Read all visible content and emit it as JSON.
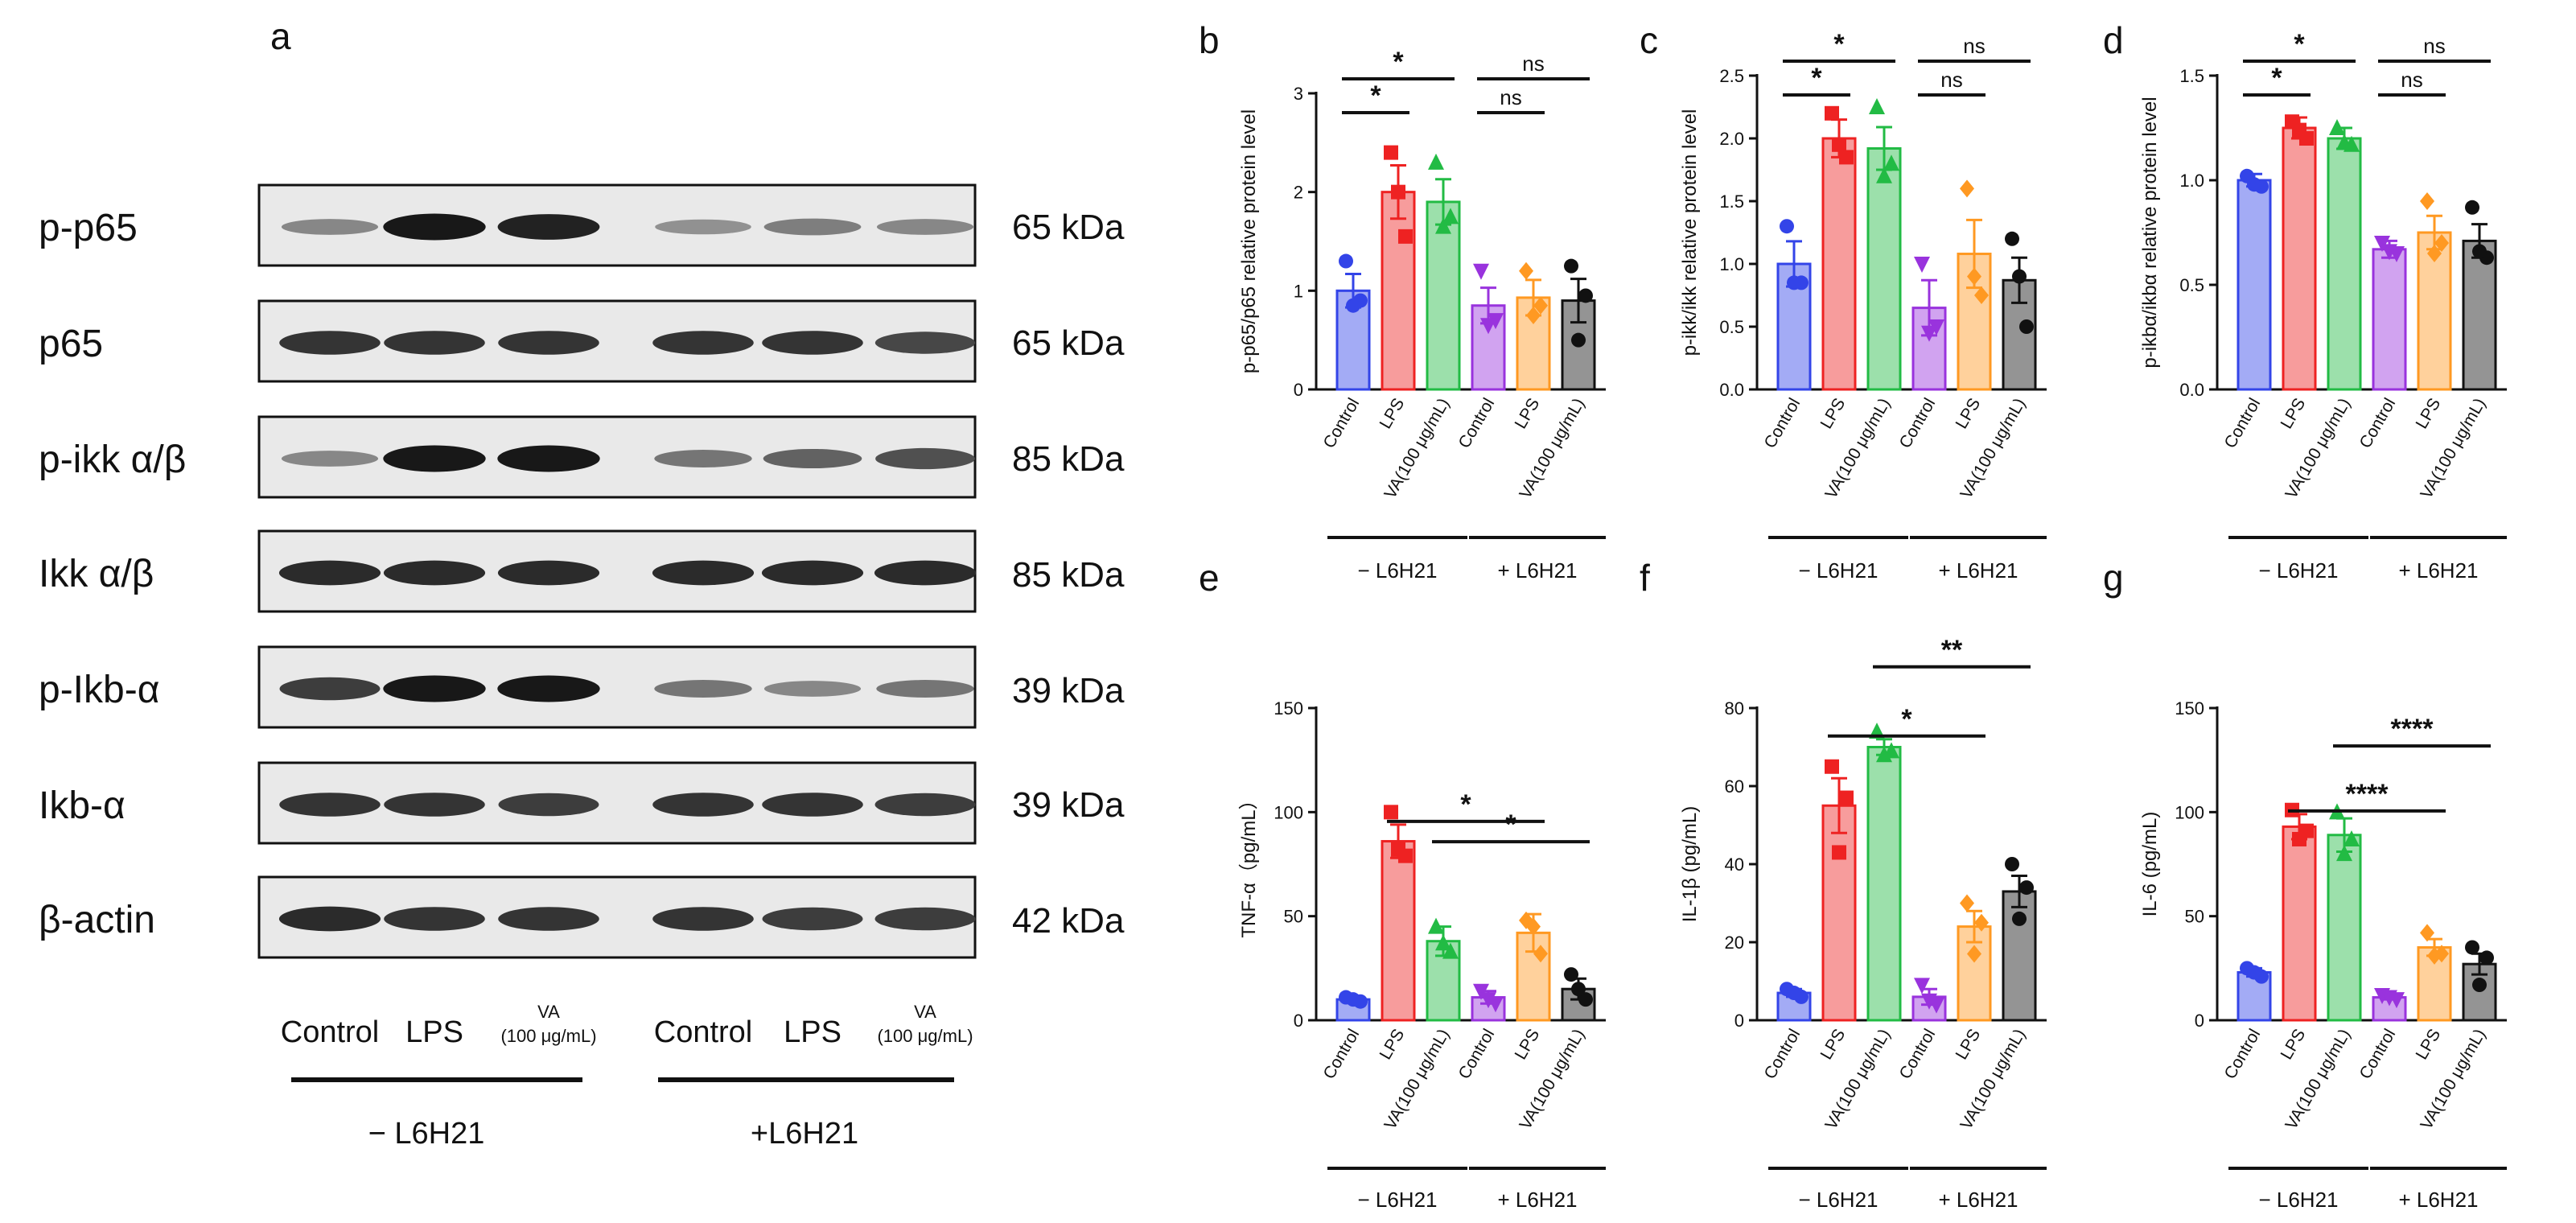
{
  "western_blot": {
    "panel_label": "a",
    "proteins": [
      {
        "name": "p-p65",
        "kda": "65 kDa"
      },
      {
        "name": "p65",
        "kda": "65 kDa"
      },
      {
        "name": "p-ikk α/β",
        "kda": "85 kDa"
      },
      {
        "name": "Ikk α/β",
        "kda": "85 kDa"
      },
      {
        "name": "p-Ikb-α",
        "kda": "39 kDa"
      },
      {
        "name": "Ikb-α",
        "kda": "39 kDa"
      },
      {
        "name": "β-actin",
        "kda": "42 kDa"
      }
    ],
    "lanes": [
      "Control",
      "LPS",
      "VA",
      "Control",
      "LPS",
      "VA"
    ],
    "lane_sub": "(100 μg/mL)",
    "groups": [
      "− L6H21",
      "+L6H21"
    ],
    "band_intensity": [
      [
        0.35,
        0.95,
        0.9,
        0.3,
        0.4,
        0.35
      ],
      [
        0.8,
        0.8,
        0.8,
        0.8,
        0.8,
        0.7
      ],
      [
        0.35,
        0.95,
        0.95,
        0.45,
        0.55,
        0.65
      ],
      [
        0.85,
        0.85,
        0.85,
        0.85,
        0.85,
        0.85
      ],
      [
        0.75,
        0.95,
        0.95,
        0.45,
        0.35,
        0.45
      ],
      [
        0.8,
        0.8,
        0.75,
        0.8,
        0.8,
        0.75
      ],
      [
        0.85,
        0.8,
        0.8,
        0.8,
        0.75,
        0.75
      ]
    ]
  },
  "colors": {
    "Control": "#3344e8",
    "LPS": "#ee2222",
    "VA": "#22bb44",
    "Control_L6H21": "#9933dd",
    "LPS_L6H21": "#ff9922",
    "VA_L6H21": "#111111"
  },
  "chart_data": [
    {
      "panel": "b",
      "type": "bar",
      "ylabel": "p-p65/p65 relative protein level",
      "categories": [
        "Control",
        "LPS",
        "VA(100 μg/mL)",
        "Control",
        "LPS",
        "VA(100 μg/mL)"
      ],
      "groups": [
        "− L6H21",
        "+ L6H21"
      ],
      "values": [
        1.0,
        2.0,
        1.9,
        0.85,
        0.93,
        0.9
      ],
      "errors": [
        0.17,
        0.27,
        0.23,
        0.18,
        0.18,
        0.22
      ],
      "points": [
        [
          1.3,
          0.9,
          0.85
        ],
        [
          2.4,
          1.55,
          2.0
        ],
        [
          2.3,
          1.75,
          1.65
        ],
        [
          1.2,
          0.7,
          0.65
        ],
        [
          1.2,
          0.85,
          0.75
        ],
        [
          1.25,
          0.95,
          0.5
        ]
      ],
      "ylim": [
        0,
        3
      ],
      "yticks": [
        0,
        1,
        2,
        3
      ],
      "significance": [
        {
          "from": 0,
          "to": 1,
          "label": "*"
        },
        {
          "from": 0,
          "to": 2,
          "label": "*"
        },
        {
          "from": 3,
          "to": 4,
          "label": "ns"
        },
        {
          "from": 3,
          "to": 5,
          "label": "ns"
        }
      ]
    },
    {
      "panel": "c",
      "type": "bar",
      "ylabel": "p-ikk/ikk relative protein level",
      "categories": [
        "Control",
        "LPS",
        "VA(100 μg/mL)",
        "Control",
        "LPS",
        "VA(100 μg/mL)"
      ],
      "groups": [
        "− L6H21",
        "+ L6H21"
      ],
      "values": [
        1.0,
        2.0,
        1.92,
        0.65,
        1.08,
        0.87
      ],
      "errors": [
        0.18,
        0.15,
        0.17,
        0.22,
        0.27,
        0.18
      ],
      "points": [
        [
          1.3,
          0.85,
          0.85
        ],
        [
          2.2,
          1.85,
          1.95
        ],
        [
          2.25,
          1.8,
          1.7
        ],
        [
          1.0,
          0.5,
          0.45
        ],
        [
          1.6,
          0.75,
          0.9
        ],
        [
          1.2,
          0.5,
          0.9
        ]
      ],
      "ylim": [
        0,
        2.5
      ],
      "yticks": [
        0.0,
        0.5,
        1.0,
        1.5,
        2.0,
        2.5
      ],
      "significance": [
        {
          "from": 0,
          "to": 1,
          "label": "*"
        },
        {
          "from": 0,
          "to": 2,
          "label": "*"
        },
        {
          "from": 3,
          "to": 4,
          "label": "ns"
        },
        {
          "from": 3,
          "to": 5,
          "label": "ns"
        }
      ]
    },
    {
      "panel": "d",
      "type": "bar",
      "ylabel": "p-ikbα/ikbα relative protein level",
      "categories": [
        "Control",
        "LPS",
        "VA(100 μg/mL)",
        "Control",
        "LPS",
        "VA(100 μg/mL)"
      ],
      "groups": [
        "− L6H21",
        "+ L6H21"
      ],
      "values": [
        1.0,
        1.25,
        1.2,
        0.67,
        0.75,
        0.71
      ],
      "errors": [
        0.03,
        0.05,
        0.05,
        0.04,
        0.08,
        0.08
      ],
      "points": [
        [
          1.02,
          0.97,
          0.98
        ],
        [
          1.28,
          1.2,
          1.24
        ],
        [
          1.25,
          1.17,
          1.18
        ],
        [
          0.7,
          0.65,
          0.66
        ],
        [
          0.9,
          0.7,
          0.65
        ],
        [
          0.87,
          0.63,
          0.66
        ]
      ],
      "ylim": [
        0,
        1.5
      ],
      "yticks": [
        0.0,
        0.5,
        1.0,
        1.5
      ],
      "significance": [
        {
          "from": 0,
          "to": 1,
          "label": "*"
        },
        {
          "from": 0,
          "to": 2,
          "label": "*"
        },
        {
          "from": 3,
          "to": 4,
          "label": "ns"
        },
        {
          "from": 3,
          "to": 5,
          "label": "ns"
        }
      ]
    },
    {
      "panel": "e",
      "type": "bar",
      "ylabel": "TNF-α（pg/mL）",
      "categories": [
        "Control",
        "LPS",
        "VA(100 μg/mL)",
        "Control",
        "LPS",
        "VA(100 μg/mL)"
      ],
      "groups": [
        "− L6H21",
        "+ L6H21"
      ],
      "values": [
        10,
        86,
        38,
        11,
        42,
        15
      ],
      "errors": [
        1,
        8,
        7,
        3,
        9,
        5
      ],
      "points": [
        [
          11,
          9,
          10
        ],
        [
          100,
          79,
          82
        ],
        [
          45,
          33,
          37
        ],
        [
          14,
          8,
          10
        ],
        [
          48,
          32,
          45
        ],
        [
          22,
          10,
          15
        ]
      ],
      "ylim": [
        0,
        150
      ],
      "yticks": [
        0,
        50,
        100,
        150
      ],
      "significance": [
        {
          "from": 1,
          "to": 4,
          "label": "*"
        },
        {
          "from": 2,
          "to": 5,
          "label": "*"
        }
      ]
    },
    {
      "panel": "f",
      "type": "bar",
      "ylabel": "IL-1β (pg/mL)",
      "categories": [
        "Control",
        "LPS",
        "VA(100 μg/mL)",
        "Control",
        "LPS",
        "VA(100 μg/mL)"
      ],
      "groups": [
        "− L6H21",
        "+ L6H21"
      ],
      "values": [
        7,
        55,
        70,
        6,
        24,
        33
      ],
      "errors": [
        1,
        7,
        2,
        2,
        4,
        4
      ],
      "points": [
        [
          8,
          6,
          7
        ],
        [
          65,
          57,
          43
        ],
        [
          74,
          69,
          68
        ],
        [
          9,
          4,
          5
        ],
        [
          30,
          25,
          17
        ],
        [
          40,
          34,
          26
        ]
      ],
      "ylim": [
        0,
        80
      ],
      "yticks": [
        0,
        20,
        40,
        60,
        80
      ],
      "significance": [
        {
          "from": 1,
          "to": 4,
          "label": "*"
        },
        {
          "from": 2,
          "to": 5,
          "label": "**"
        }
      ]
    },
    {
      "panel": "g",
      "type": "bar",
      "ylabel": "IL-6 (pg/mL)",
      "categories": [
        "Control",
        "LPS",
        "VA(100 μg/mL)",
        "Control",
        "LPS",
        "VA(100 μg/mL)"
      ],
      "groups": [
        "− L6H21",
        "+ L6H21"
      ],
      "values": [
        23,
        93,
        89,
        11,
        35,
        27
      ],
      "errors": [
        2,
        6,
        8,
        1,
        4,
        5
      ],
      "points": [
        [
          25,
          21,
          23
        ],
        [
          101,
          91,
          87
        ],
        [
          100,
          87,
          80
        ],
        [
          12,
          10,
          11
        ],
        [
          42,
          32,
          31
        ],
        [
          35,
          30,
          17
        ]
      ],
      "ylim": [
        0,
        150
      ],
      "yticks": [
        0,
        50,
        100,
        150
      ],
      "significance": [
        {
          "from": 1,
          "to": 4,
          "label": "****"
        },
        {
          "from": 2,
          "to": 5,
          "label": "****"
        }
      ]
    }
  ]
}
